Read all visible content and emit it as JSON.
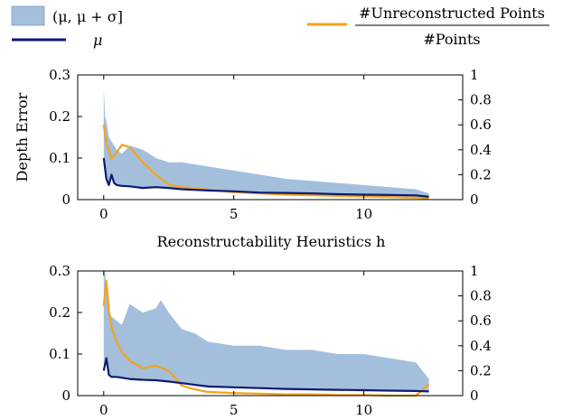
{
  "legend": {
    "band_label": "(μ, μ + σ]",
    "mean_label": "μ",
    "ratio_numerator": "#Unreconstructed Points",
    "ratio_denominator": "#Points"
  },
  "colors": {
    "band": "#a3bfdc",
    "band_edge": "#7f9ec4",
    "mean": "#0d1a72",
    "ratio": "#f3a31a"
  },
  "chart_data": [
    {
      "type": "line",
      "xlabel": "Reconstructability Heuristics h",
      "ylabel": "Depth Error",
      "xlim": [
        -1,
        13.8
      ],
      "ylim": [
        0,
        0.3
      ],
      "y2lim": [
        0,
        1
      ],
      "xticks": [
        "0",
        "5",
        "10"
      ],
      "yticks": [
        "0",
        "0.1",
        "0.2",
        "0.3"
      ],
      "y2ticks": [
        "0",
        "0.2",
        "0.4",
        "0.6",
        "0.8",
        "1"
      ],
      "grid": false,
      "legend": "top",
      "series": [
        {
          "role": "mean",
          "axis": "left",
          "x": [
            0,
            0.1,
            0.2,
            0.3,
            0.4,
            0.5,
            0.7,
            1,
            1.5,
            2,
            2.5,
            3,
            4,
            5,
            6,
            7,
            8,
            9,
            10,
            11,
            12,
            12.5
          ],
          "y": [
            0.1,
            0.05,
            0.035,
            0.06,
            0.04,
            0.035,
            0.033,
            0.032,
            0.028,
            0.03,
            0.028,
            0.025,
            0.022,
            0.02,
            0.017,
            0.016,
            0.015,
            0.013,
            0.012,
            0.011,
            0.01,
            0.007
          ]
        },
        {
          "role": "band_upper",
          "axis": "left",
          "x": [
            0,
            0.05,
            0.1,
            0.2,
            0.3,
            0.5,
            0.7,
            1,
            1.5,
            2,
            2.5,
            3,
            4,
            5,
            6,
            7,
            8,
            9,
            10,
            11,
            12,
            12.5
          ],
          "y": [
            0.27,
            0.2,
            0.19,
            0.15,
            0.14,
            0.12,
            0.11,
            0.13,
            0.12,
            0.1,
            0.09,
            0.09,
            0.08,
            0.07,
            0.06,
            0.05,
            0.045,
            0.04,
            0.035,
            0.03,
            0.025,
            0.015
          ]
        },
        {
          "role": "ratio",
          "axis": "right",
          "x": [
            0,
            0.1,
            0.2,
            0.3,
            0.5,
            0.7,
            1,
            1.5,
            2,
            2.5,
            3,
            4,
            5,
            6,
            7,
            8,
            9,
            10,
            11,
            12,
            12.5
          ],
          "y": [
            0.6,
            0.45,
            0.4,
            0.33,
            0.38,
            0.44,
            0.42,
            0.3,
            0.2,
            0.12,
            0.1,
            0.08,
            0.06,
            0.05,
            0.04,
            0.035,
            0.03,
            0.025,
            0.02,
            0.015,
            0.01
          ]
        }
      ]
    },
    {
      "type": "line",
      "xlabel": "",
      "ylabel": "",
      "xlim": [
        -1,
        13.8
      ],
      "ylim": [
        0,
        0.3
      ],
      "y2lim": [
        0,
        1
      ],
      "xticks": [
        "0",
        "5",
        "10"
      ],
      "yticks": [
        "0",
        "0.1",
        "0.2",
        "0.3"
      ],
      "y2ticks": [
        "0",
        "0.2",
        "0.4",
        "0.6",
        "0.8",
        "1"
      ],
      "grid": false,
      "series": [
        {
          "role": "mean",
          "axis": "left",
          "x": [
            0,
            0.1,
            0.2,
            0.3,
            0.5,
            0.7,
            1,
            1.5,
            2,
            2.5,
            3,
            4,
            5,
            6,
            7,
            8,
            9,
            10,
            11,
            12,
            12.5
          ],
          "y": [
            0.06,
            0.09,
            0.05,
            0.045,
            0.045,
            0.043,
            0.04,
            0.038,
            0.037,
            0.034,
            0.03,
            0.022,
            0.02,
            0.018,
            0.016,
            0.015,
            0.014,
            0.013,
            0.012,
            0.011,
            0.01
          ]
        },
        {
          "role": "band_upper",
          "axis": "left",
          "x": [
            0,
            0.05,
            0.1,
            0.2,
            0.3,
            0.5,
            0.7,
            1,
            1.5,
            2,
            2.2,
            2.5,
            3,
            3.5,
            4,
            5,
            6,
            7,
            8,
            9,
            10,
            11,
            12,
            12.5
          ],
          "y": [
            0.3,
            0.3,
            0.25,
            0.2,
            0.19,
            0.18,
            0.17,
            0.22,
            0.2,
            0.21,
            0.23,
            0.2,
            0.16,
            0.15,
            0.13,
            0.12,
            0.12,
            0.11,
            0.11,
            0.1,
            0.1,
            0.09,
            0.08,
            0.04
          ]
        },
        {
          "role": "ratio",
          "axis": "right",
          "x": [
            0,
            0.1,
            0.2,
            0.3,
            0.5,
            0.7,
            1,
            1.5,
            2,
            2.5,
            3,
            3.5,
            4,
            5,
            6,
            7,
            8,
            9,
            10,
            11,
            12,
            12.5
          ],
          "y": [
            0.72,
            0.92,
            0.68,
            0.55,
            0.43,
            0.35,
            0.28,
            0.22,
            0.24,
            0.2,
            0.08,
            0.05,
            0.03,
            0.02,
            0.015,
            0.01,
            0.01,
            0.005,
            0.005,
            0,
            0,
            0.09
          ]
        }
      ]
    }
  ]
}
